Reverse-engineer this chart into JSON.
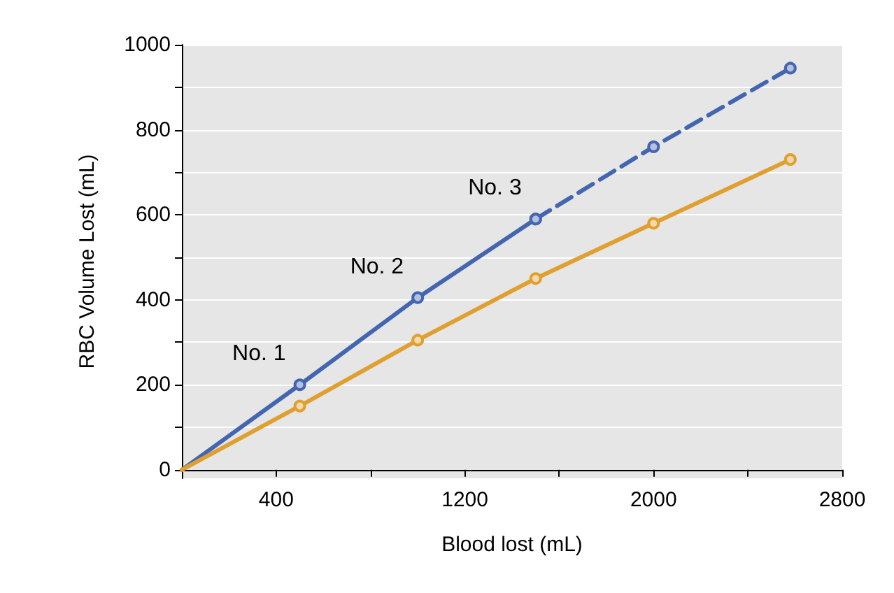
{
  "chart_data": {
    "type": "line",
    "xlabel": "Blood lost (mL)",
    "ylabel": "RBC Volume Lost (mL)",
    "xlim": [
      0,
      2800
    ],
    "xticks": [
      400,
      {
        "value": 800,
        "label": null
      },
      1200,
      {
        "value": 1600,
        "label": null
      },
      2000,
      {
        "value": 2400,
        "label": null
      },
      2800
    ],
    "ylim": [
      -20,
      1000
    ],
    "yticks": [
      0,
      {
        "value": 100,
        "label": null
      },
      200,
      {
        "value": 300,
        "label": null
      },
      400,
      {
        "value": 500,
        "label": null
      },
      600,
      {
        "value": 700,
        "label": null
      },
      800,
      {
        "value": 900,
        "label": null
      },
      1000
    ],
    "grid": "y",
    "marker": "circle",
    "series": [
      {
        "color": "#4466b0",
        "x": [
          0,
          500,
          1000,
          1500
        ],
        "values": [
          0,
          200,
          405,
          590
        ]
      },
      {
        "color": "#4466b0",
        "x": [
          1500,
          2000,
          2580
        ],
        "values": [
          590,
          760,
          945
        ],
        "line_style": "dashed"
      },
      {
        "color": "#e0a030",
        "x": [
          0,
          500,
          1000,
          1500,
          2000,
          2580
        ],
        "values": [
          0,
          150,
          305,
          450,
          580,
          730
        ]
      }
    ],
    "annotations": [
      {
        "text": "No. 1",
        "x": 500,
        "y": 200
      },
      {
        "text": "No. 2",
        "x": 1000,
        "y": 405
      },
      {
        "text": "No. 3",
        "x": 1500,
        "y": 590
      }
    ]
  }
}
